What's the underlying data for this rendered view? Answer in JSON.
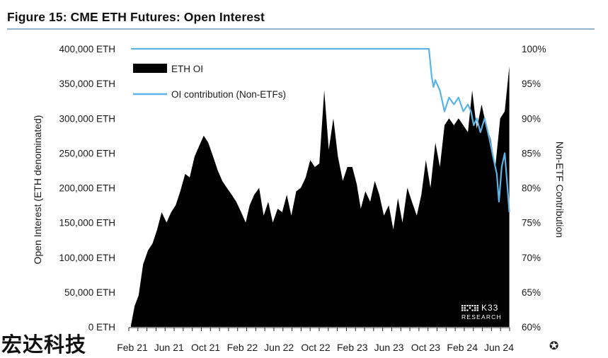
{
  "title": "Figure 15: CME ETH Futures: Open Interest",
  "chart_data": {
    "type": "area",
    "ylabel": "Open Interest (ETH denominated)",
    "y2label": "Non-ETF Contribution",
    "y_ticks": [
      "400,000 ETH",
      "350,000 ETH",
      "300,000 ETH",
      "250,000 ETH",
      "200,000 ETH",
      "150,000 ETH",
      "100,000 ETH",
      "50,000 ETH",
      "0 ETH"
    ],
    "y_tick_values": [
      400000,
      350000,
      300000,
      250000,
      200000,
      150000,
      100000,
      50000,
      0
    ],
    "y2_ticks": [
      "100%",
      "95%",
      "90%",
      "85%",
      "80%",
      "75%",
      "70%",
      "65%",
      "60%"
    ],
    "y2_tick_values": [
      100,
      95,
      90,
      85,
      80,
      75,
      70,
      65,
      60
    ],
    "ylim": [
      0,
      400000
    ],
    "y2lim": [
      60,
      100
    ],
    "x_ticks": [
      "Feb 21",
      "Jun 21",
      "Oct 21",
      "Feb 22",
      "Jun 22",
      "Oct 22",
      "Feb 23",
      "Jun 23",
      "Oct 23",
      "Feb 24",
      "Jun 24"
    ],
    "legend": {
      "placement": "top-left"
    },
    "series": [
      {
        "name": "ETH OI",
        "axis": "left",
        "color": "#000000",
        "x": [
          "2021-02-08",
          "2021-02-20",
          "2021-03-05",
          "2021-03-20",
          "2021-04-05",
          "2021-04-20",
          "2021-05-05",
          "2021-05-20",
          "2021-06-05",
          "2021-06-20",
          "2021-07-05",
          "2021-07-20",
          "2021-08-05",
          "2021-08-20",
          "2021-09-05",
          "2021-09-20",
          "2021-10-05",
          "2021-10-20",
          "2021-11-05",
          "2021-11-20",
          "2021-12-05",
          "2021-12-20",
          "2022-01-05",
          "2022-01-20",
          "2022-02-05",
          "2022-02-20",
          "2022-03-05",
          "2022-03-20",
          "2022-04-05",
          "2022-04-20",
          "2022-05-05",
          "2022-05-20",
          "2022-06-05",
          "2022-06-20",
          "2022-07-05",
          "2022-07-20",
          "2022-08-05",
          "2022-08-20",
          "2022-09-05",
          "2022-09-20",
          "2022-10-05",
          "2022-10-20",
          "2022-11-05",
          "2022-11-20",
          "2022-12-05",
          "2022-12-20",
          "2023-01-05",
          "2023-01-20",
          "2023-02-05",
          "2023-02-20",
          "2023-03-05",
          "2023-03-20",
          "2023-04-05",
          "2023-04-20",
          "2023-05-05",
          "2023-05-20",
          "2023-06-05",
          "2023-06-20",
          "2023-07-05",
          "2023-07-20",
          "2023-08-05",
          "2023-08-20",
          "2023-09-05",
          "2023-09-20",
          "2023-10-05",
          "2023-10-20",
          "2023-11-05",
          "2023-11-20",
          "2023-12-05",
          "2023-12-20",
          "2024-01-05",
          "2024-01-20",
          "2024-02-05",
          "2024-02-20",
          "2024-03-05",
          "2024-03-20",
          "2024-04-05",
          "2024-04-20",
          "2024-05-05",
          "2024-05-20",
          "2024-06-05",
          "2024-06-20",
          "2024-07-05"
        ],
        "values": [
          2000,
          30000,
          45000,
          90000,
          110000,
          120000,
          140000,
          165000,
          150000,
          165000,
          175000,
          195000,
          220000,
          215000,
          245000,
          260000,
          275000,
          265000,
          245000,
          225000,
          210000,
          200000,
          190000,
          180000,
          165000,
          150000,
          175000,
          190000,
          200000,
          160000,
          180000,
          150000,
          170000,
          165000,
          190000,
          160000,
          195000,
          200000,
          215000,
          240000,
          230000,
          235000,
          340000,
          255000,
          300000,
          245000,
          210000,
          230000,
          230000,
          205000,
          170000,
          195000,
          180000,
          210000,
          190000,
          160000,
          175000,
          140000,
          185000,
          150000,
          200000,
          180000,
          160000,
          190000,
          240000,
          200000,
          265000,
          230000,
          290000,
          300000,
          290000,
          300000,
          290000,
          280000,
          340000,
          285000,
          320000,
          290000,
          270000,
          230000,
          300000,
          310000,
          375000
        ]
      },
      {
        "name": "OI contribution (Non-ETFs)",
        "axis": "right",
        "color": "#5ab4e5",
        "x": [
          "2021-02-08",
          "2023-10-15",
          "2023-10-24",
          "2023-10-30",
          "2023-11-05",
          "2023-11-10",
          "2023-11-20",
          "2023-12-05",
          "2023-12-20",
          "2024-01-05",
          "2024-01-20",
          "2024-02-05",
          "2024-02-20",
          "2024-03-01",
          "2024-03-10",
          "2024-03-20",
          "2024-04-01",
          "2024-04-15",
          "2024-05-01",
          "2024-05-15",
          "2024-05-25",
          "2024-06-01",
          "2024-06-10",
          "2024-06-20",
          "2024-07-01",
          "2024-07-05"
        ],
        "values": [
          100,
          100,
          96,
          94.5,
          95.5,
          95,
          94,
          91,
          93,
          92,
          93,
          91,
          92,
          91,
          89,
          90,
          88,
          90,
          87,
          84,
          82,
          78,
          83,
          85,
          79,
          76.5
        ]
      }
    ]
  },
  "watermarks": {
    "k33_line1": "K33",
    "k33_line2": "RESEARCH",
    "cjk": "宏达科技"
  },
  "icons": {
    "corner": "circle-plus-icon"
  }
}
